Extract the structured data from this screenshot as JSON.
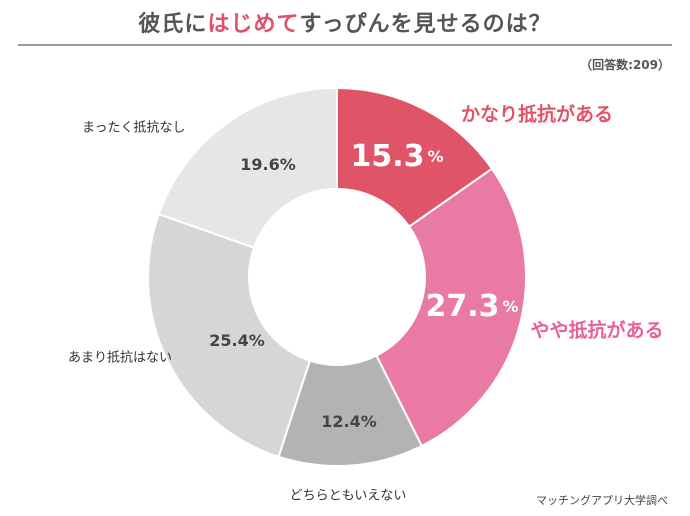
{
  "title": {
    "part1": "彼氏に",
    "highlight": "はじめて",
    "part2": "すっぴんを見せるのは？"
  },
  "respondents": "（回答数:209）",
  "source": "マッチングアプリ大学調べ",
  "chart_data": {
    "type": "pie",
    "donut": true,
    "slices": [
      {
        "label": "かなり抵抗がある",
        "value": 15.3,
        "display": "15.3",
        "unit": "%",
        "color": "#e05468"
      },
      {
        "label": "やや抵抗がある",
        "value": 27.3,
        "display": "27.3",
        "unit": "%",
        "color": "#e87aa4"
      },
      {
        "label": "どちらともいえない",
        "value": 12.4,
        "display": "12.4%",
        "color": "#b3b3b3"
      },
      {
        "label": "あまり抵抗はない",
        "value": 25.4,
        "display": "25.4%",
        "color": "#d6d6d6"
      },
      {
        "label": "まったく抵抗なし",
        "value": 19.6,
        "display": "19.6%",
        "color": "#e6e6e6"
      }
    ]
  }
}
